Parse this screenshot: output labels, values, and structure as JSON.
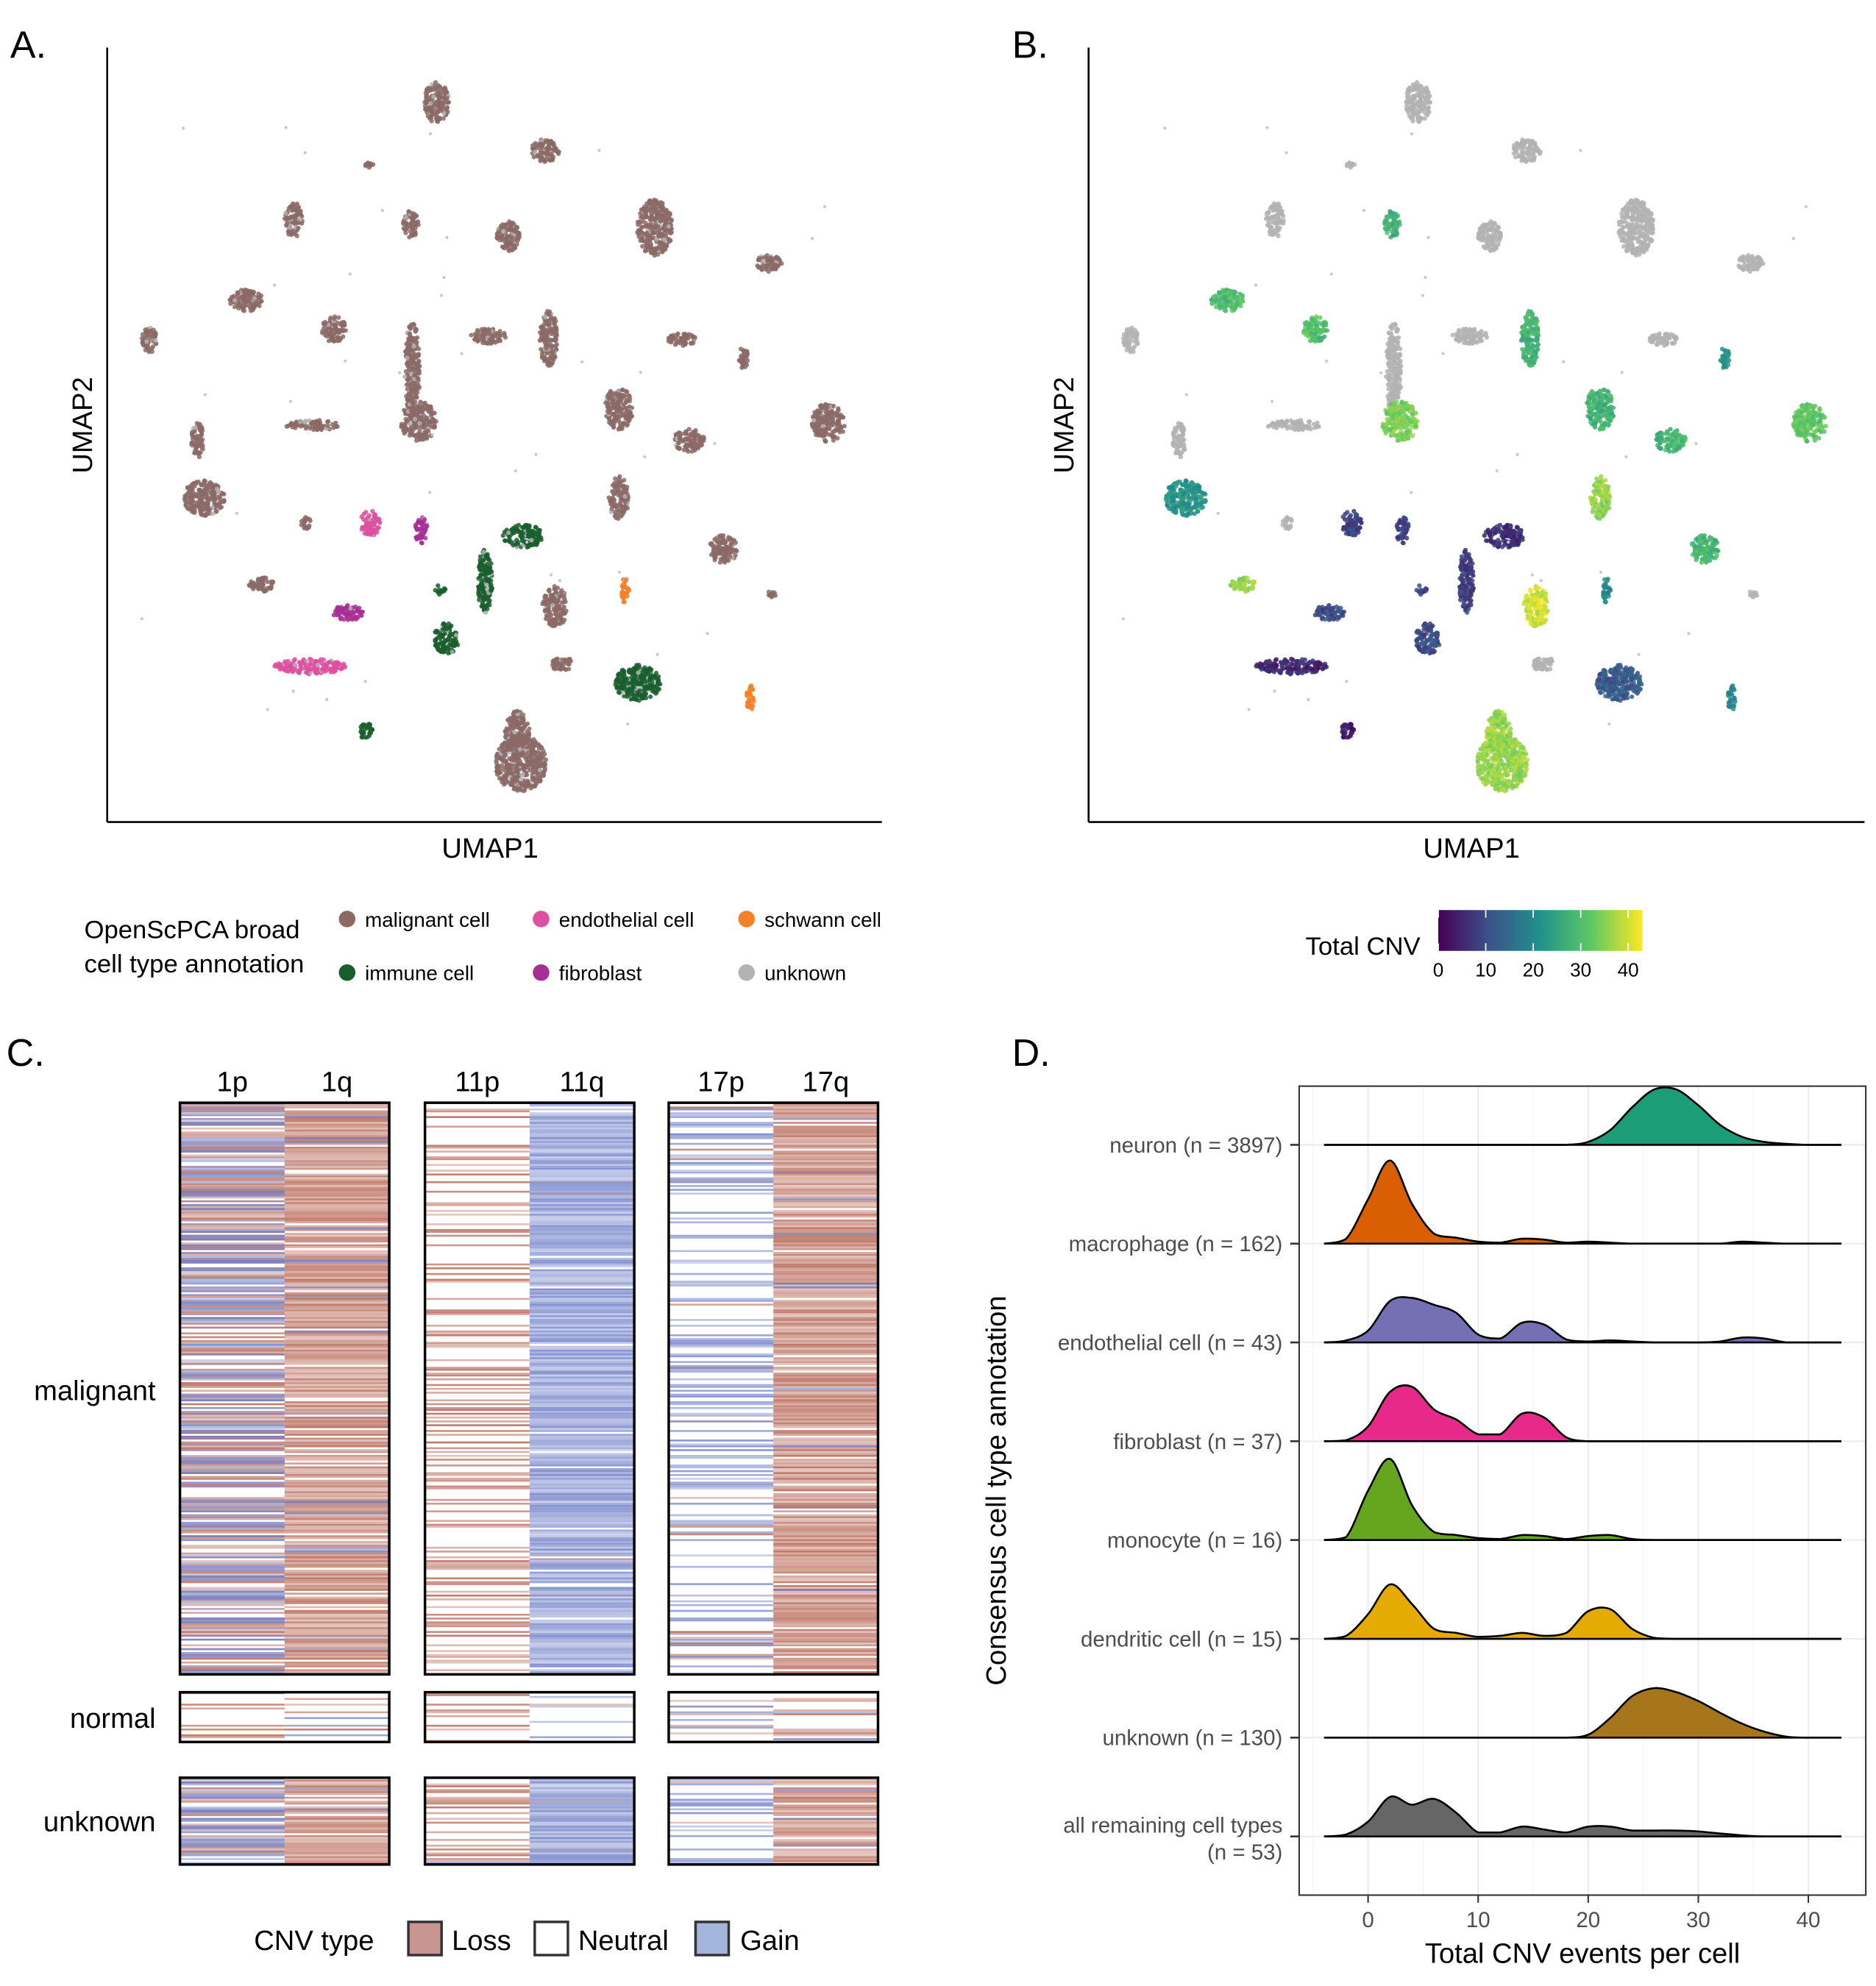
{
  "panels": {
    "a": "A.",
    "b": "B.",
    "c": "C.",
    "d": "D."
  },
  "umap": {
    "xlabel": "UMAP1",
    "ylabel": "UMAP2",
    "legend_title_line1": "OpenScPCA broad",
    "legend_title_line2": "cell type annotation",
    "categories": [
      {
        "label": "malignant cell",
        "color": "#8b6a66"
      },
      {
        "label": "endothelial cell",
        "color": "#de4fa0"
      },
      {
        "label": "schwann cell",
        "color": "#f58025"
      },
      {
        "label": "immune cell",
        "color": "#1a5e2e"
      },
      {
        "label": "fibroblast",
        "color": "#a72e94"
      },
      {
        "label": "unknown",
        "color": "#b3b3b3"
      }
    ],
    "cnv_legend_title": "Total CNV",
    "cnv_ticks": [
      "0",
      "10",
      "20",
      "30",
      "40"
    ],
    "cnv_range": [
      0,
      43
    ],
    "cnv_palette": [
      "#440154",
      "#3b528b",
      "#21918c",
      "#5ec962",
      "#fde725"
    ],
    "na_color": "#b3b3b3"
  },
  "heatmap": {
    "arms": [
      "1p",
      "1q",
      "11p",
      "11q",
      "17p",
      "17q"
    ],
    "groups": [
      "malignant",
      "normal",
      "unknown"
    ],
    "legend_title": "CNV type",
    "legend": [
      {
        "label": "Loss",
        "color": "#c99593"
      },
      {
        "label": "Neutral",
        "color": "#ffffff"
      },
      {
        "label": "Gain",
        "color": "#a3b5db"
      }
    ]
  },
  "chart_data": {
    "type": "ridgeline",
    "xlabel": "Total CNV events per cell",
    "ylabel": "Consensus cell type annotation",
    "xlim": [
      -6.3,
      45.2
    ],
    "xticks": [
      0,
      10,
      20,
      30,
      40
    ],
    "grid": true,
    "x": [
      -4,
      -2,
      0,
      2,
      4,
      6,
      8,
      10,
      12,
      14,
      16,
      18,
      20,
      22,
      24,
      26,
      28,
      30,
      32,
      34,
      36,
      38,
      40,
      42
    ],
    "series": [
      {
        "name": "neuron (n = 3897)",
        "color": "#1b9e77",
        "density": [
          0,
          0,
          0,
          0,
          0,
          0,
          0,
          0,
          0,
          0,
          0,
          0,
          0.03,
          0.15,
          0.38,
          0.56,
          0.56,
          0.4,
          0.2,
          0.08,
          0.03,
          0.01,
          0,
          0
        ]
      },
      {
        "name": "macrophage (n = 162)",
        "color": "#d95f02",
        "density": [
          0,
          0.05,
          0.45,
          0.84,
          0.4,
          0.1,
          0.06,
          0.02,
          0.01,
          0.05,
          0.04,
          0.01,
          0.02,
          0.01,
          0,
          0,
          0,
          0,
          0,
          0.02,
          0.01,
          0,
          0,
          0
        ]
      },
      {
        "name": "endothelial cell (n = 43)",
        "color": "#7570b3",
        "density": [
          0,
          0.02,
          0.12,
          0.42,
          0.45,
          0.38,
          0.3,
          0.08,
          0.04,
          0.2,
          0.18,
          0.03,
          0.01,
          0.02,
          0.01,
          0,
          0,
          0,
          0.01,
          0.05,
          0.04,
          0,
          0,
          0
        ]
      },
      {
        "name": "fibroblast (n = 37)",
        "color": "#e7298a",
        "density": [
          0,
          0.01,
          0.15,
          0.5,
          0.55,
          0.32,
          0.22,
          0.07,
          0.07,
          0.28,
          0.24,
          0.04,
          0,
          0,
          0,
          0,
          0,
          0,
          0,
          0,
          0,
          0,
          0,
          0
        ]
      },
      {
        "name": "monocyte (n = 16)",
        "color": "#66a61e",
        "density": [
          0,
          0.03,
          0.5,
          0.82,
          0.35,
          0.08,
          0.05,
          0.02,
          0.01,
          0.05,
          0.04,
          0.01,
          0.04,
          0.05,
          0.01,
          0,
          0,
          0,
          0,
          0,
          0,
          0,
          0,
          0
        ]
      },
      {
        "name": "dendritic cell (n = 15)",
        "color": "#e6ab02",
        "density": [
          0,
          0.03,
          0.25,
          0.55,
          0.35,
          0.1,
          0.06,
          0.02,
          0.03,
          0.06,
          0.03,
          0.06,
          0.28,
          0.3,
          0.1,
          0.01,
          0,
          0,
          0,
          0,
          0,
          0,
          0,
          0
        ]
      },
      {
        "name": "unknown (n = 130)",
        "color": "#a6761d",
        "density": [
          0,
          0,
          0,
          0,
          0,
          0,
          0,
          0,
          0,
          0,
          0,
          0,
          0.03,
          0.2,
          0.42,
          0.5,
          0.46,
          0.37,
          0.25,
          0.14,
          0.06,
          0.01,
          0,
          0
        ]
      },
      {
        "name": "all remaining cell types\n(n = 53)",
        "label_line1": "all remaining cell types",
        "label_line2": "(n = 53)",
        "color": "#666666",
        "density": [
          0,
          0.02,
          0.15,
          0.4,
          0.32,
          0.38,
          0.24,
          0.04,
          0.04,
          0.1,
          0.07,
          0.04,
          0.1,
          0.1,
          0.06,
          0.06,
          0.06,
          0.05,
          0.03,
          0.01,
          0,
          0,
          0,
          0
        ]
      }
    ]
  }
}
